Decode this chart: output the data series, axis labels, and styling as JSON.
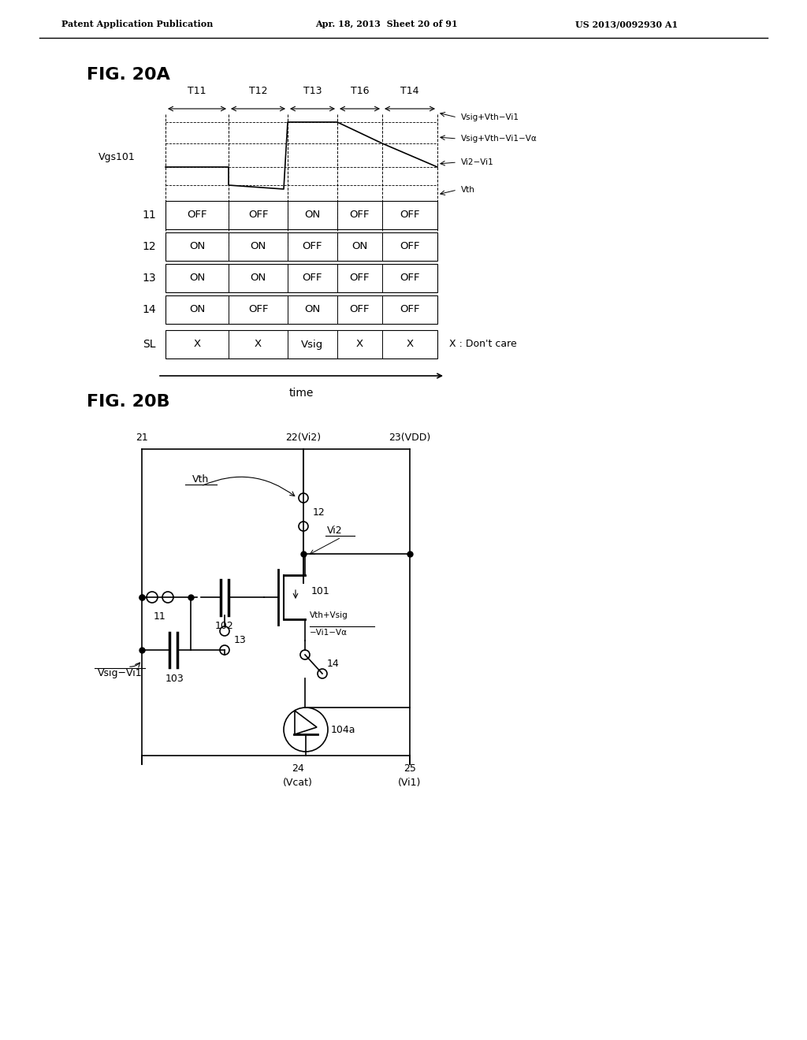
{
  "bg_color": "#ffffff",
  "header_left": "Patent Application Publication",
  "header_mid": "Apr. 18, 2013  Sheet 20 of 91",
  "header_right": "US 2013/0092930 A1",
  "fig20a_title": "FIG. 20A",
  "fig20b_title": "FIG. 20B",
  "time_periods": [
    "T11",
    "T12",
    "T13",
    "T16",
    "T14"
  ],
  "row_labels": [
    "11",
    "12",
    "13",
    "14",
    "SL"
  ],
  "table_data": [
    [
      "OFF",
      "OFF",
      "ON",
      "OFF",
      "OFF"
    ],
    [
      "ON",
      "ON",
      "OFF",
      "ON",
      "OFF"
    ],
    [
      "ON",
      "ON",
      "OFF",
      "OFF",
      "OFF"
    ],
    [
      "ON",
      "OFF",
      "ON",
      "OFF",
      "OFF"
    ],
    [
      "X",
      "X",
      "Vsig",
      "X",
      "X"
    ]
  ],
  "vgs_label": "Vgs101",
  "signal_labels": [
    "Vsig+Vth−Vi1",
    "Vsig+Vth−Vi1−Vα",
    "Vi2−Vi1",
    "Vth"
  ],
  "dont_care_text": "X : Don't care",
  "time_label": "time"
}
